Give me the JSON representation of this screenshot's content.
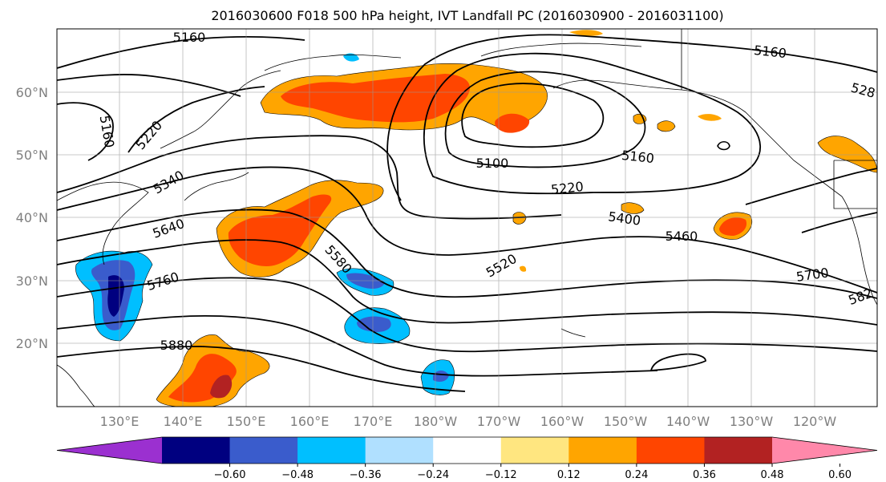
{
  "title": "2016030600 F018 500 hPa height, IVT Landfall PC (2016030900 - 2016031100)",
  "lat_labels": [
    "60°N",
    "50°N",
    "40°N",
    "30°N",
    "20°N"
  ],
  "lon_labels": [
    "130°E",
    "140°E",
    "150°E",
    "160°E",
    "170°E",
    "180°W",
    "170°W",
    "160°W",
    "150°W",
    "140°W",
    "130°W",
    "120°W"
  ],
  "colorbar": {
    "ticks": [
      "−0.60",
      "−0.48",
      "−0.36",
      "−0.24",
      "−0.12",
      "0.12",
      "0.24",
      "0.36",
      "0.48",
      "0.60"
    ],
    "colors": [
      "#9b30d0",
      "#000080",
      "#3a5ccc",
      "#00bfff",
      "#b0e0ff",
      "#ffffff",
      "#ffe680",
      "#ffa500",
      "#ff4500",
      "#b22222",
      "#ff88aa"
    ]
  },
  "contour_labels": [
    "5160",
    "5160",
    "5160",
    "5220",
    "5340",
    "5640",
    "5760",
    "5880",
    "5580",
    "5100",
    "5160",
    "5220",
    "5400",
    "5460",
    "5520",
    "5700",
    "582",
    "528"
  ]
}
